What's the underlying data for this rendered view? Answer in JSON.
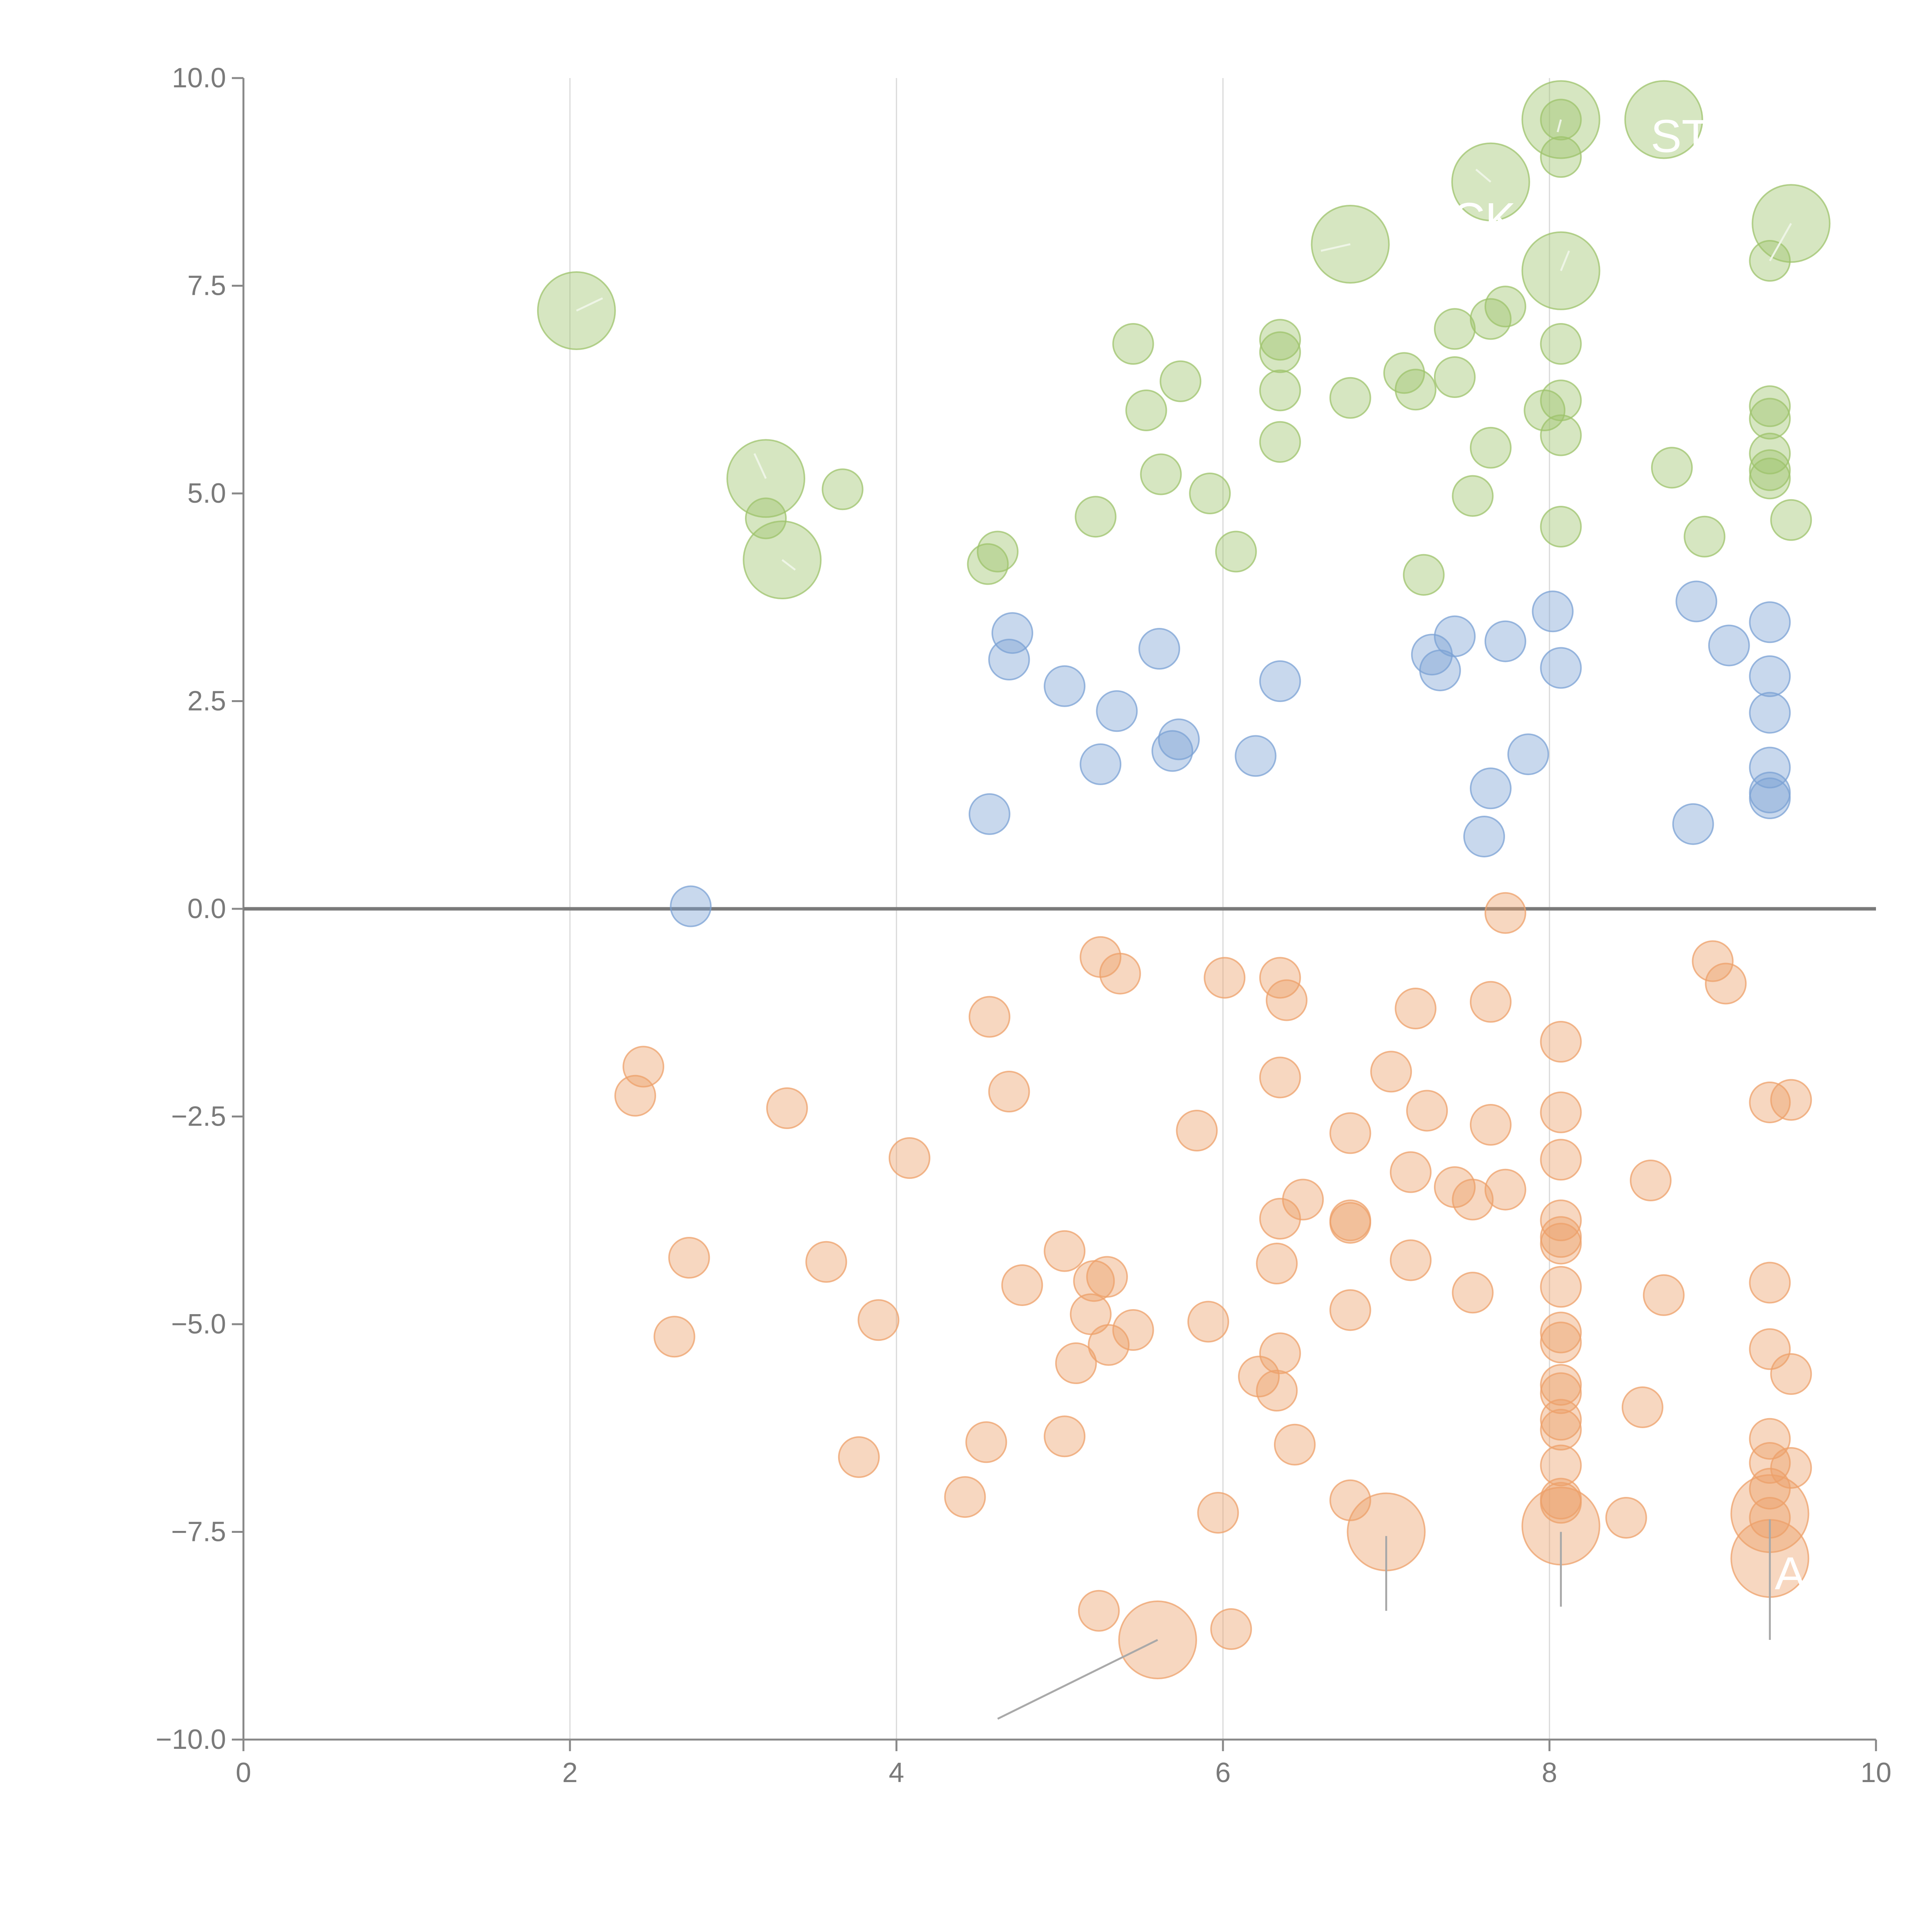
{
  "colors": {
    "background": "#ffffff",
    "grid": "#d9d9d9",
    "axis": "#888888",
    "zero_line": "#7a7a7a",
    "tick_text": "#7a7a7a",
    "leader_light": "#eef5e6",
    "leader_dark": "#a9a9a9",
    "label_text": "#ffffff"
  },
  "chart_data": {
    "type": "scatter",
    "title": "",
    "xlabel": "",
    "ylabel": "",
    "xlim": [
      0,
      10
    ],
    "ylim": [
      -10,
      10
    ],
    "x_ticks": [
      {
        "value": 0,
        "label": "0"
      },
      {
        "value": 2,
        "label": "2"
      },
      {
        "value": 4,
        "label": "4"
      },
      {
        "value": 6,
        "label": "6"
      },
      {
        "value": 8,
        "label": "8"
      },
      {
        "value": 10,
        "label": "10"
      }
    ],
    "y_ticks": [
      {
        "value": 10,
        "label": "10.0"
      },
      {
        "value": 7.5,
        "label": "7.5"
      },
      {
        "value": 5,
        "label": "5.0"
      },
      {
        "value": 2.5,
        "label": "2.5"
      },
      {
        "value": 0,
        "label": "0.0"
      },
      {
        "value": -2.5,
        "label": "−2.5"
      },
      {
        "value": -5,
        "label": "−5.0"
      },
      {
        "value": -7.5,
        "label": "−7.5"
      },
      {
        "value": -10,
        "label": "−10.0"
      }
    ],
    "vertical_grid_x": [
      2,
      4,
      6,
      8
    ],
    "zero_line": true,
    "series": [
      {
        "name": "green",
        "color": "#9dc36b",
        "points": [
          [
            3.67,
            5.05
          ],
          [
            3.2,
            4.7
          ],
          [
            4.62,
            4.3
          ],
          [
            4.56,
            4.15
          ],
          [
            5.22,
            4.72
          ],
          [
            5.45,
            6.8
          ],
          [
            5.53,
            6.0
          ],
          [
            5.62,
            5.23
          ],
          [
            5.74,
            6.35
          ],
          [
            5.92,
            5.0
          ],
          [
            6.08,
            4.3
          ],
          [
            6.35,
            6.85
          ],
          [
            6.35,
            6.7
          ],
          [
            6.35,
            6.24
          ],
          [
            6.35,
            5.62
          ],
          [
            6.78,
            6.15
          ],
          [
            7.11,
            6.45
          ],
          [
            7.18,
            6.25
          ],
          [
            7.23,
            4.02
          ],
          [
            7.42,
            6.98
          ],
          [
            7.42,
            6.4
          ],
          [
            7.53,
            4.97
          ],
          [
            7.64,
            7.1
          ],
          [
            7.64,
            5.55
          ],
          [
            7.73,
            7.25
          ],
          [
            7.97,
            6.0
          ],
          [
            8.07,
            6.8
          ],
          [
            8.07,
            6.12
          ],
          [
            8.07,
            5.7
          ],
          [
            8.07,
            4.6
          ],
          [
            8.07,
            9.05
          ],
          [
            8.07,
            9.5
          ],
          [
            8.75,
            5.31
          ],
          [
            8.95,
            4.48
          ],
          [
            9.35,
            7.8
          ],
          [
            9.35,
            6.05
          ],
          [
            9.35,
            5.9
          ],
          [
            9.35,
            5.48
          ],
          [
            9.35,
            5.28
          ],
          [
            9.35,
            5.18
          ],
          [
            9.48,
            4.68
          ]
        ],
        "big_points": [
          [
            2.04,
            7.2
          ],
          [
            3.2,
            5.18
          ],
          [
            3.3,
            4.2
          ],
          [
            6.78,
            8.0
          ],
          [
            7.64,
            8.75
          ],
          [
            8.07,
            9.5
          ],
          [
            8.07,
            7.68
          ],
          [
            8.7,
            9.5
          ],
          [
            9.48,
            8.25
          ]
        ]
      },
      {
        "name": "blue",
        "color": "#7ba1d4",
        "points": [
          [
            2.74,
            0.03
          ],
          [
            4.57,
            1.14
          ],
          [
            4.69,
            3.0
          ],
          [
            4.71,
            3.32
          ],
          [
            5.03,
            2.68
          ],
          [
            5.25,
            1.74
          ],
          [
            5.35,
            2.38
          ],
          [
            5.61,
            3.13
          ],
          [
            5.69,
            1.9
          ],
          [
            5.73,
            2.04
          ],
          [
            6.2,
            1.84
          ],
          [
            6.35,
            2.74
          ],
          [
            7.28,
            3.06
          ],
          [
            7.33,
            2.87
          ],
          [
            7.42,
            3.28
          ],
          [
            7.6,
            0.87
          ],
          [
            7.64,
            1.45
          ],
          [
            7.73,
            3.22
          ],
          [
            7.87,
            1.86
          ],
          [
            8.02,
            3.58
          ],
          [
            8.07,
            2.9
          ],
          [
            8.88,
            1.02
          ],
          [
            8.9,
            3.7
          ],
          [
            9.1,
            3.17
          ],
          [
            9.35,
            3.45
          ],
          [
            9.35,
            2.8
          ],
          [
            9.35,
            2.36
          ],
          [
            9.35,
            1.7
          ],
          [
            9.35,
            1.4
          ],
          [
            9.35,
            1.33
          ]
        ],
        "big_points": []
      },
      {
        "name": "orange",
        "color": "#eda06a",
        "points": [
          [
            2.4,
            -2.25
          ],
          [
            2.45,
            -1.9
          ],
          [
            2.64,
            -5.15
          ],
          [
            2.73,
            -4.2
          ],
          [
            3.33,
            -2.4
          ],
          [
            3.57,
            -4.25
          ],
          [
            3.77,
            -6.6
          ],
          [
            3.89,
            -4.95
          ],
          [
            4.08,
            -3.0
          ],
          [
            4.42,
            -7.08
          ],
          [
            4.55,
            -6.42
          ],
          [
            4.57,
            -1.3
          ],
          [
            4.69,
            -2.2
          ],
          [
            4.77,
            -4.53
          ],
          [
            5.03,
            -6.35
          ],
          [
            5.03,
            -4.12
          ],
          [
            5.1,
            -5.47
          ],
          [
            5.19,
            -4.88
          ],
          [
            5.21,
            -4.48
          ],
          [
            5.24,
            -8.45
          ],
          [
            5.25,
            -0.58
          ],
          [
            5.29,
            -4.43
          ],
          [
            5.3,
            -5.25
          ],
          [
            5.37,
            -0.78
          ],
          [
            5.45,
            -5.07
          ],
          [
            5.84,
            -2.67
          ],
          [
            5.91,
            -4.97
          ],
          [
            5.97,
            -7.27
          ],
          [
            6.01,
            -0.83
          ],
          [
            6.05,
            -8.67
          ],
          [
            6.22,
            -5.63
          ],
          [
            6.33,
            -4.27
          ],
          [
            6.33,
            -5.8
          ],
          [
            6.35,
            -0.83
          ],
          [
            6.35,
            -2.03
          ],
          [
            6.35,
            -3.73
          ],
          [
            6.35,
            -5.35
          ],
          [
            6.39,
            -1.1
          ],
          [
            6.44,
            -6.45
          ],
          [
            6.49,
            -3.5
          ],
          [
            6.78,
            -2.7
          ],
          [
            6.78,
            -3.75
          ],
          [
            6.78,
            -4.83
          ],
          [
            6.78,
            -7.12
          ],
          [
            6.78,
            -3.78
          ],
          [
            7.03,
            -1.96
          ],
          [
            7.15,
            -3.17
          ],
          [
            7.15,
            -4.23
          ],
          [
            7.18,
            -1.2
          ],
          [
            7.25,
            -2.43
          ],
          [
            7.42,
            -3.35
          ],
          [
            7.53,
            -3.5
          ],
          [
            7.53,
            -4.62
          ],
          [
            7.64,
            -1.12
          ],
          [
            7.64,
            -2.6
          ],
          [
            7.73,
            -3.38
          ],
          [
            7.73,
            -0.05
          ],
          [
            8.07,
            -1.6
          ],
          [
            8.07,
            -2.45
          ],
          [
            8.07,
            -3.02
          ],
          [
            8.07,
            -3.75
          ],
          [
            8.07,
            -3.95
          ],
          [
            8.07,
            -4.03
          ],
          [
            8.07,
            -4.55
          ],
          [
            8.07,
            -5.1
          ],
          [
            8.07,
            -5.22
          ],
          [
            8.07,
            -5.73
          ],
          [
            8.07,
            -5.83
          ],
          [
            8.07,
            -6.15
          ],
          [
            8.07,
            -6.27
          ],
          [
            8.07,
            -6.7
          ],
          [
            8.07,
            -7.1
          ],
          [
            8.07,
            -7.15
          ],
          [
            8.47,
            -7.33
          ],
          [
            8.57,
            -6.0
          ],
          [
            8.62,
            -3.27
          ],
          [
            8.7,
            -4.65
          ],
          [
            9.0,
            -0.63
          ],
          [
            9.08,
            -0.9
          ],
          [
            9.35,
            -2.33
          ],
          [
            9.35,
            -4.5
          ],
          [
            9.35,
            -5.3
          ],
          [
            9.35,
            -6.38
          ],
          [
            9.35,
            -6.67
          ],
          [
            9.35,
            -6.98
          ],
          [
            9.35,
            -7.33
          ],
          [
            9.48,
            -2.3
          ],
          [
            9.48,
            -5.6
          ],
          [
            9.48,
            -6.73
          ]
        ],
        "big_points": [
          [
            5.6,
            -8.8
          ],
          [
            7.0,
            -7.5
          ],
          [
            8.07,
            -7.43
          ],
          [
            9.35,
            -7.28
          ],
          [
            9.35,
            -7.82
          ]
        ]
      }
    ],
    "annotations": [
      {
        "text": "A",
        "x": 9.38,
        "y": -8.0,
        "color": "#ffffff"
      },
      {
        "text": "ST",
        "x": 8.62,
        "y": 9.3,
        "color": "#ffffff"
      },
      {
        "text": "CK",
        "x": 7.4,
        "y": 8.3,
        "color": "#ffffff"
      }
    ],
    "leader_lines": [
      {
        "from": [
          5.6,
          -8.8
        ],
        "to": [
          4.62,
          -9.75
        ],
        "style": "dark"
      },
      {
        "from": [
          7.0,
          -7.55
        ],
        "to": [
          7.0,
          -8.45
        ],
        "style": "dark"
      },
      {
        "from": [
          8.07,
          -7.5
        ],
        "to": [
          8.07,
          -8.4
        ],
        "style": "dark"
      },
      {
        "from": [
          9.35,
          -7.35
        ],
        "to": [
          9.35,
          -8.8
        ],
        "style": "dark"
      },
      {
        "from": [
          2.04,
          7.2
        ],
        "to": [
          2.2,
          7.35
        ],
        "style": "light"
      },
      {
        "from": [
          3.2,
          5.18
        ],
        "to": [
          3.13,
          5.48
        ],
        "style": "light"
      },
      {
        "from": [
          3.3,
          4.2
        ],
        "to": [
          3.38,
          4.08
        ],
        "style": "light"
      },
      {
        "from": [
          6.78,
          8.0
        ],
        "to": [
          6.6,
          7.92
        ],
        "style": "light"
      },
      {
        "from": [
          7.64,
          8.75
        ],
        "to": [
          7.55,
          8.9
        ],
        "style": "light"
      },
      {
        "from": [
          8.07,
          9.5
        ],
        "to": [
          8.05,
          9.35
        ],
        "style": "light"
      },
      {
        "from": [
          8.07,
          7.68
        ],
        "to": [
          8.12,
          7.92
        ],
        "style": "light"
      },
      {
        "from": [
          9.48,
          8.25
        ],
        "to": [
          9.35,
          7.8
        ],
        "style": "light"
      }
    ]
  }
}
